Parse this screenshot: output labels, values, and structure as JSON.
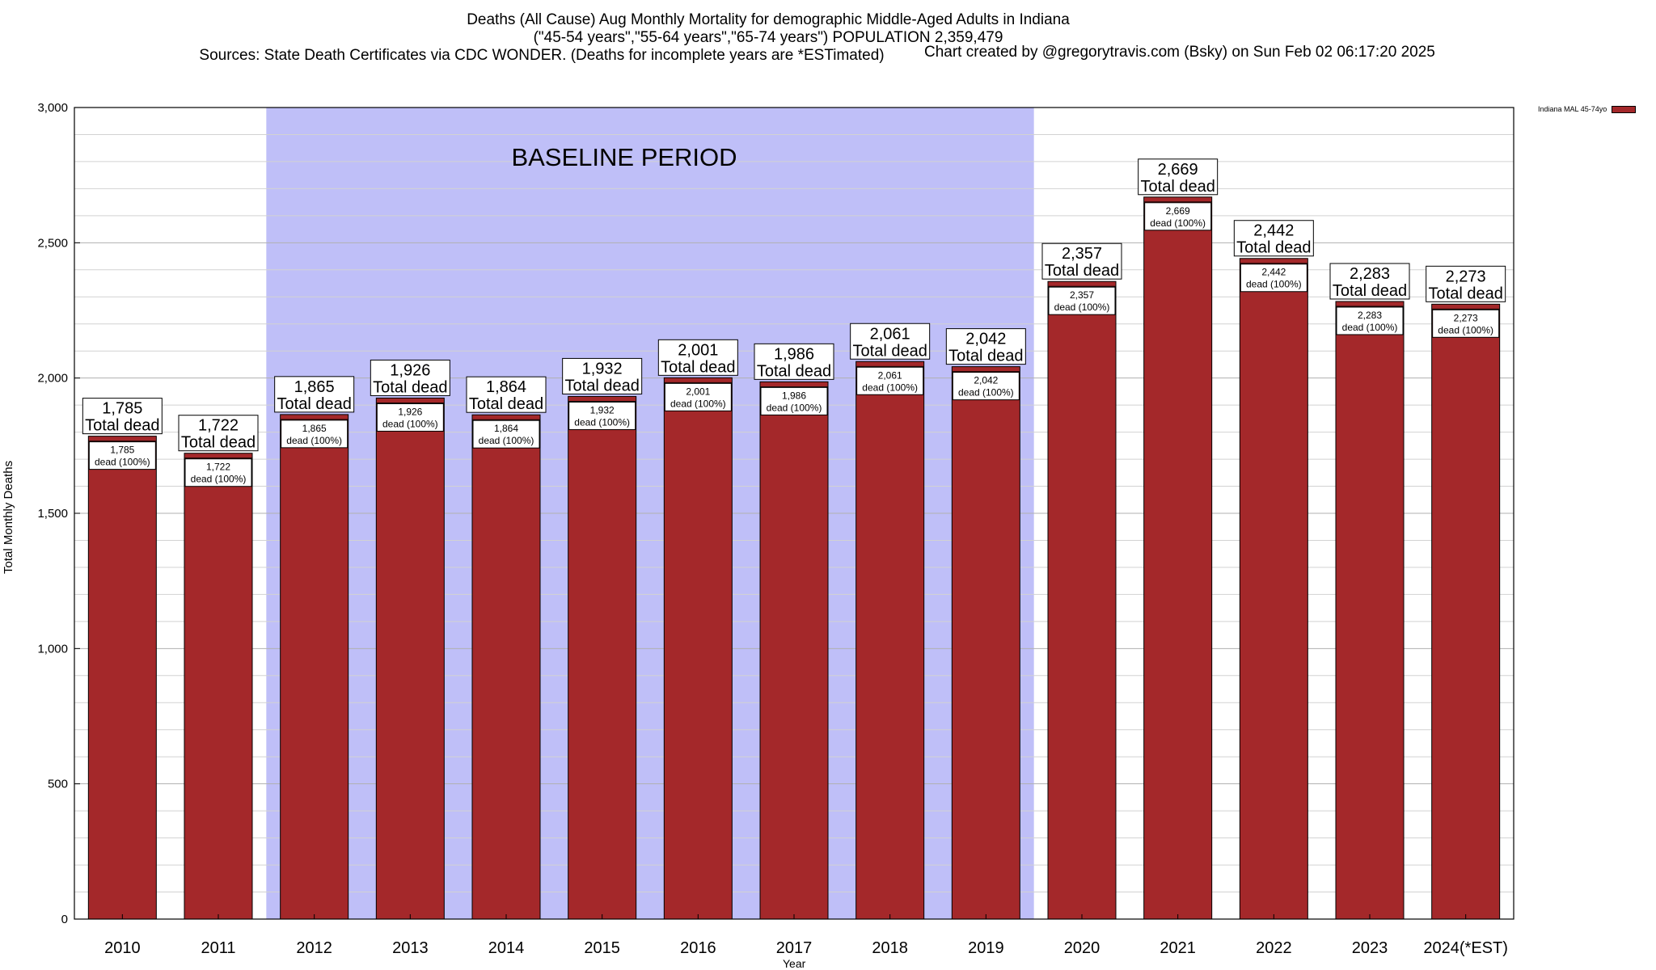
{
  "title_lines": [
    "Deaths (All Cause) Aug Monthly Mortality for demographic Middle-Aged Adults in Indiana",
    "(\"45-54 years\",\"55-64 years\",\"65-74 years\") POPULATION 2,359,479",
    "Sources: State Death Certificates via CDC WONDER. (Deaths for incomplete years are *ESTimated)"
  ],
  "credit": "Chart created by @gregorytravis.com (Bsky) on Sun Feb 02 06:17:20 2025",
  "chart_data": {
    "type": "bar",
    "ylabel": "Total Monthly Deaths",
    "xlabel": "Year",
    "ylim": [
      0,
      3000
    ],
    "yticks": [
      0,
      500,
      1000,
      1500,
      2000,
      2500,
      3000
    ],
    "ytick_labels": [
      "0",
      "500",
      "1,000",
      "1,500",
      "2,000",
      "2,500",
      "3,000"
    ],
    "grid": true,
    "legend": {
      "position": "top-right",
      "label": "Indiana MAL 45-74yo"
    },
    "bar_color": "#a4282a",
    "shaded_region": {
      "label": "BASELINE PERIOD",
      "from": "2012",
      "to": "2019",
      "color": "#bfbff8"
    },
    "categories": [
      "2010",
      "2011",
      "2012",
      "2013",
      "2014",
      "2015",
      "2016",
      "2017",
      "2018",
      "2019",
      "2020",
      "2021",
      "2022",
      "2023",
      "2024(*EST)"
    ],
    "series": [
      {
        "name": "Indiana MAL 45-74yo",
        "values": [
          1785,
          1722,
          1865,
          1926,
          1864,
          1932,
          2001,
          1986,
          2061,
          2042,
          2357,
          2669,
          2442,
          2283,
          2273
        ]
      }
    ],
    "top_labels": [
      "1,785",
      "1,722",
      "1,865",
      "1,926",
      "1,864",
      "1,932",
      "2,001",
      "1,986",
      "2,061",
      "2,042",
      "2,357",
      "2,669",
      "2,442",
      "2,283",
      "2,273"
    ],
    "top_label_suffix": "Total dead",
    "inner_labels": [
      "1,785",
      "1,722",
      "1,865",
      "1,926",
      "1,864",
      "1,932",
      "2,001",
      "1,986",
      "2,061",
      "2,042",
      "2,357",
      "2,669",
      "2,442",
      "2,283",
      "2,273"
    ],
    "inner_label_suffix": "dead (100%)"
  }
}
